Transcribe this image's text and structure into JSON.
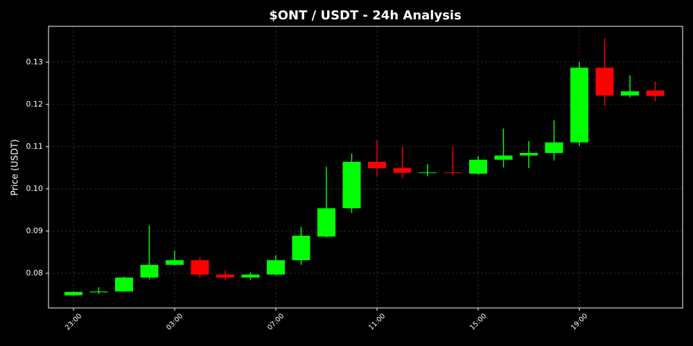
{
  "chart_data": {
    "type": "candlestick",
    "title": "$ONT / USDT - 24h Analysis",
    "y_label": "Price (USDT)",
    "categories": [
      "23:00",
      null,
      null,
      null,
      "03:00",
      null,
      null,
      null,
      "07:00",
      null,
      null,
      null,
      "11:00",
      null,
      null,
      null,
      "15:00",
      null,
      null,
      null,
      "19:00",
      null,
      null,
      null
    ],
    "open": [
      0.0748,
      0.0755,
      0.0757,
      0.079,
      0.082,
      0.0831,
      0.0797,
      0.079,
      0.0797,
      0.0831,
      0.0887,
      0.0954,
      0.1064,
      0.1049,
      0.1038,
      0.1039,
      0.1036,
      0.1069,
      0.1079,
      0.1085,
      0.111,
      0.1287,
      0.1221,
      0.1233
    ],
    "high": [
      0.0757,
      0.0767,
      0.0792,
      0.0913,
      0.0854,
      0.0838,
      0.0807,
      0.0802,
      0.0843,
      0.091,
      0.1052,
      0.1084,
      0.1115,
      0.11,
      0.1059,
      0.11,
      0.1077,
      0.1143,
      0.1113,
      0.1162,
      0.13,
      0.1356,
      0.1269,
      0.1254
    ],
    "low": [
      0.0746,
      0.0751,
      0.0756,
      0.0785,
      0.0818,
      0.0789,
      0.0784,
      0.0784,
      0.0795,
      0.082,
      0.0885,
      0.0943,
      0.103,
      0.1026,
      0.103,
      0.1033,
      0.1033,
      0.1051,
      0.1049,
      0.1067,
      0.1102,
      0.1197,
      0.1216,
      0.1208
    ],
    "close": [
      0.0756,
      0.0757,
      0.079,
      0.082,
      0.0831,
      0.0797,
      0.079,
      0.0797,
      0.0831,
      0.0889,
      0.0954,
      0.1064,
      0.1049,
      0.1038,
      0.1039,
      0.1038,
      0.1069,
      0.1079,
      0.1085,
      0.111,
      0.1287,
      0.1221,
      0.1231,
      0.122
    ],
    "up_color": "#00ff00",
    "down_color": "#ff0000",
    "ylim": [
      0.0718,
      0.1385
    ],
    "yticks": [
      0.08,
      0.09,
      {
        "value": 0.1,
        "label": "0.10"
      },
      0.11,
      0.12,
      0.13
    ],
    "grid": true
  }
}
